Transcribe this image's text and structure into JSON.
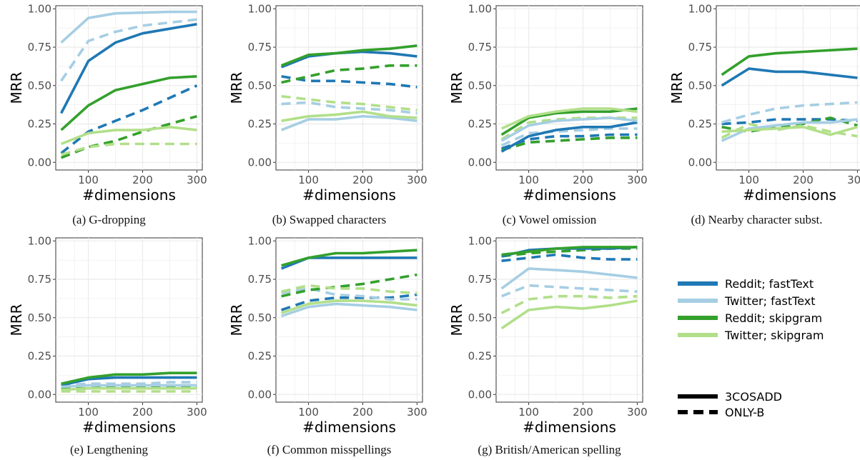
{
  "axis": {
    "ylabel": "MRR",
    "xlabel": "#dimensions",
    "xticks": [
      100,
      200,
      300
    ],
    "yticks": [
      "0.00",
      "0.25",
      "0.50",
      "0.75",
      "1.00"
    ],
    "xlim": [
      40,
      310
    ],
    "ylim": [
      -0.05,
      1.02
    ]
  },
  "colors": {
    "Reddit; fastText": "#1f78b4",
    "Twitter; fastText": "#a6cee3",
    "Reddit; skipgram": "#33a02c",
    "Twitter; skipgram": "#b2df8a",
    "grid": "#ebebeb"
  },
  "legend": {
    "series": [
      "Reddit; fastText",
      "Twitter; fastText",
      "Reddit; skipgram",
      "Twitter; skipgram"
    ],
    "linetypes": [
      "3COSADD",
      "ONLY-B"
    ]
  },
  "chart_data": [
    {
      "type": "line",
      "caption": "(a) G-dropping",
      "x": [
        50,
        100,
        150,
        200,
        250,
        300
      ],
      "series": [
        {
          "name": "Reddit; fastText",
          "linetype": "3COSADD",
          "values": [
            0.32,
            0.66,
            0.78,
            0.84,
            0.87,
            0.9
          ]
        },
        {
          "name": "Twitter; fastText",
          "linetype": "3COSADD",
          "values": [
            0.78,
            0.94,
            0.97,
            0.975,
            0.98,
            0.98
          ]
        },
        {
          "name": "Reddit; skipgram",
          "linetype": "3COSADD",
          "values": [
            0.21,
            0.37,
            0.47,
            0.51,
            0.55,
            0.56
          ]
        },
        {
          "name": "Twitter; skipgram",
          "linetype": "3COSADD",
          "values": [
            0.12,
            0.19,
            0.21,
            0.21,
            0.23,
            0.21
          ]
        },
        {
          "name": "Reddit; fastText",
          "linetype": "ONLY-B",
          "values": [
            0.06,
            0.2,
            0.27,
            0.34,
            0.42,
            0.5
          ]
        },
        {
          "name": "Twitter; fastText",
          "linetype": "ONLY-B",
          "values": [
            0.53,
            0.79,
            0.85,
            0.89,
            0.91,
            0.93
          ]
        },
        {
          "name": "Reddit; skipgram",
          "linetype": "ONLY-B",
          "values": [
            0.03,
            0.1,
            0.14,
            0.2,
            0.25,
            0.3
          ]
        },
        {
          "name": "Twitter; skipgram",
          "linetype": "ONLY-B",
          "values": [
            0.05,
            0.1,
            0.12,
            0.12,
            0.12,
            0.12
          ]
        }
      ]
    },
    {
      "type": "line",
      "caption": "(b) Swapped characters",
      "x": [
        50,
        100,
        150,
        200,
        250,
        300
      ],
      "series": [
        {
          "name": "Reddit; fastText",
          "linetype": "3COSADD",
          "values": [
            0.62,
            0.69,
            0.71,
            0.72,
            0.71,
            0.69
          ]
        },
        {
          "name": "Twitter; fastText",
          "linetype": "3COSADD",
          "values": [
            0.21,
            0.28,
            0.28,
            0.3,
            0.29,
            0.27
          ]
        },
        {
          "name": "Reddit; skipgram",
          "linetype": "3COSADD",
          "values": [
            0.63,
            0.7,
            0.71,
            0.73,
            0.74,
            0.76
          ]
        },
        {
          "name": "Twitter; skipgram",
          "linetype": "3COSADD",
          "values": [
            0.27,
            0.3,
            0.31,
            0.33,
            0.3,
            0.29
          ]
        },
        {
          "name": "Reddit; fastText",
          "linetype": "ONLY-B",
          "values": [
            0.56,
            0.53,
            0.53,
            0.52,
            0.51,
            0.49
          ]
        },
        {
          "name": "Twitter; fastText",
          "linetype": "ONLY-B",
          "values": [
            0.38,
            0.39,
            0.36,
            0.35,
            0.34,
            0.32
          ]
        },
        {
          "name": "Reddit; skipgram",
          "linetype": "ONLY-B",
          "values": [
            0.52,
            0.56,
            0.6,
            0.61,
            0.63,
            0.63
          ]
        },
        {
          "name": "Twitter; skipgram",
          "linetype": "ONLY-B",
          "values": [
            0.43,
            0.41,
            0.39,
            0.38,
            0.36,
            0.34
          ]
        }
      ]
    },
    {
      "type": "line",
      "caption": "(c) Vowel omission",
      "x": [
        50,
        100,
        150,
        200,
        250,
        300
      ],
      "series": [
        {
          "name": "Reddit; fastText",
          "linetype": "3COSADD",
          "values": [
            0.07,
            0.17,
            0.21,
            0.23,
            0.23,
            0.26
          ]
        },
        {
          "name": "Twitter; fastText",
          "linetype": "3COSADD",
          "values": [
            0.14,
            0.24,
            0.27,
            0.28,
            0.29,
            0.27
          ]
        },
        {
          "name": "Reddit; skipgram",
          "linetype": "3COSADD",
          "values": [
            0.18,
            0.29,
            0.32,
            0.33,
            0.33,
            0.35
          ]
        },
        {
          "name": "Twitter; skipgram",
          "linetype": "3COSADD",
          "values": [
            0.22,
            0.3,
            0.33,
            0.35,
            0.35,
            0.33
          ]
        },
        {
          "name": "Reddit; fastText",
          "linetype": "ONLY-B",
          "values": [
            0.09,
            0.15,
            0.17,
            0.17,
            0.18,
            0.18
          ]
        },
        {
          "name": "Twitter; fastText",
          "linetype": "ONLY-B",
          "values": [
            0.11,
            0.19,
            0.2,
            0.21,
            0.22,
            0.22
          ]
        },
        {
          "name": "Reddit; skipgram",
          "linetype": "ONLY-B",
          "values": [
            0.08,
            0.13,
            0.14,
            0.15,
            0.16,
            0.16
          ]
        },
        {
          "name": "Twitter; skipgram",
          "linetype": "ONLY-B",
          "values": [
            0.15,
            0.26,
            0.28,
            0.29,
            0.29,
            0.29
          ]
        }
      ]
    },
    {
      "type": "line",
      "caption": "(d) Nearby character subst.",
      "x": [
        50,
        100,
        150,
        200,
        250,
        300
      ],
      "series": [
        {
          "name": "Reddit; fastText",
          "linetype": "3COSADD",
          "values": [
            0.5,
            0.61,
            0.59,
            0.59,
            0.57,
            0.55
          ]
        },
        {
          "name": "Twitter; fastText",
          "linetype": "3COSADD",
          "values": [
            0.14,
            0.22,
            0.24,
            0.26,
            0.26,
            0.28
          ]
        },
        {
          "name": "Reddit; skipgram",
          "linetype": "3COSADD",
          "values": [
            0.57,
            0.69,
            0.71,
            0.72,
            0.73,
            0.74
          ]
        },
        {
          "name": "Twitter; skipgram",
          "linetype": "3COSADD",
          "values": [
            0.2,
            0.21,
            0.22,
            0.23,
            0.18,
            0.23
          ]
        },
        {
          "name": "Reddit; fastText",
          "linetype": "ONLY-B",
          "values": [
            0.25,
            0.26,
            0.28,
            0.28,
            0.28,
            0.27
          ]
        },
        {
          "name": "Twitter; fastText",
          "linetype": "ONLY-B",
          "values": [
            0.26,
            0.31,
            0.35,
            0.37,
            0.38,
            0.39
          ]
        },
        {
          "name": "Reddit; skipgram",
          "linetype": "ONLY-B",
          "values": [
            0.23,
            0.2,
            0.23,
            0.25,
            0.29,
            0.24
          ]
        },
        {
          "name": "Twitter; skipgram",
          "linetype": "ONLY-B",
          "values": [
            0.16,
            0.25,
            0.21,
            0.24,
            0.2,
            0.17
          ]
        }
      ]
    },
    {
      "type": "line",
      "caption": "(e) Lengthening",
      "x": [
        50,
        100,
        150,
        200,
        250,
        300
      ],
      "series": [
        {
          "name": "Reddit; fastText",
          "linetype": "3COSADD",
          "values": [
            0.06,
            0.1,
            0.11,
            0.11,
            0.11,
            0.11
          ]
        },
        {
          "name": "Twitter; fastText",
          "linetype": "3COSADD",
          "values": [
            0.05,
            0.06,
            0.06,
            0.06,
            0.06,
            0.06
          ]
        },
        {
          "name": "Reddit; skipgram",
          "linetype": "3COSADD",
          "values": [
            0.07,
            0.11,
            0.13,
            0.13,
            0.14,
            0.14
          ]
        },
        {
          "name": "Twitter; skipgram",
          "linetype": "3COSADD",
          "values": [
            0.03,
            0.04,
            0.04,
            0.04,
            0.04,
            0.04
          ]
        },
        {
          "name": "Reddit; fastText",
          "linetype": "ONLY-B",
          "values": [
            0.03,
            0.04,
            0.04,
            0.04,
            0.05,
            0.05
          ]
        },
        {
          "name": "Twitter; fastText",
          "linetype": "ONLY-B",
          "values": [
            0.06,
            0.07,
            0.07,
            0.07,
            0.08,
            0.08
          ]
        },
        {
          "name": "Reddit; skipgram",
          "linetype": "ONLY-B",
          "values": [
            0.04,
            0.04,
            0.05,
            0.05,
            0.05,
            0.05
          ]
        },
        {
          "name": "Twitter; skipgram",
          "linetype": "ONLY-B",
          "values": [
            0.02,
            0.02,
            0.02,
            0.02,
            0.02,
            0.02
          ]
        }
      ]
    },
    {
      "type": "line",
      "caption": "(f) Common misspellings",
      "x": [
        50,
        100,
        150,
        200,
        250,
        300
      ],
      "series": [
        {
          "name": "Reddit; fastText",
          "linetype": "3COSADD",
          "values": [
            0.82,
            0.89,
            0.89,
            0.89,
            0.89,
            0.89
          ]
        },
        {
          "name": "Twitter; fastText",
          "linetype": "3COSADD",
          "values": [
            0.51,
            0.57,
            0.59,
            0.58,
            0.57,
            0.55
          ]
        },
        {
          "name": "Reddit; skipgram",
          "linetype": "3COSADD",
          "values": [
            0.84,
            0.89,
            0.92,
            0.92,
            0.93,
            0.94
          ]
        },
        {
          "name": "Twitter; skipgram",
          "linetype": "3COSADD",
          "values": [
            0.53,
            0.59,
            0.61,
            0.61,
            0.6,
            0.58
          ]
        },
        {
          "name": "Reddit; fastText",
          "linetype": "ONLY-B",
          "values": [
            0.55,
            0.61,
            0.63,
            0.63,
            0.63,
            0.65
          ]
        },
        {
          "name": "Twitter; fastText",
          "linetype": "ONLY-B",
          "values": [
            0.66,
            0.69,
            0.65,
            0.64,
            0.62,
            0.62
          ]
        },
        {
          "name": "Reddit; skipgram",
          "linetype": "ONLY-B",
          "values": [
            0.64,
            0.68,
            0.7,
            0.72,
            0.75,
            0.78
          ]
        },
        {
          "name": "Twitter; skipgram",
          "linetype": "ONLY-B",
          "values": [
            0.67,
            0.71,
            0.69,
            0.69,
            0.67,
            0.66
          ]
        }
      ]
    },
    {
      "type": "line",
      "caption": "(g) British/American spelling",
      "x": [
        50,
        100,
        150,
        200,
        250,
        300
      ],
      "series": [
        {
          "name": "Reddit; fastText",
          "linetype": "3COSADD",
          "values": [
            0.9,
            0.94,
            0.95,
            0.95,
            0.95,
            0.96
          ]
        },
        {
          "name": "Twitter; fastText",
          "linetype": "3COSADD",
          "values": [
            0.69,
            0.82,
            0.81,
            0.8,
            0.78,
            0.76
          ]
        },
        {
          "name": "Reddit; skipgram",
          "linetype": "3COSADD",
          "values": [
            0.91,
            0.93,
            0.95,
            0.96,
            0.96,
            0.96
          ]
        },
        {
          "name": "Twitter; skipgram",
          "linetype": "3COSADD",
          "values": [
            0.43,
            0.55,
            0.57,
            0.56,
            0.58,
            0.61
          ]
        },
        {
          "name": "Reddit; fastText",
          "linetype": "ONLY-B",
          "values": [
            0.87,
            0.89,
            0.91,
            0.89,
            0.88,
            0.88
          ]
        },
        {
          "name": "Twitter; fastText",
          "linetype": "ONLY-B",
          "values": [
            0.64,
            0.71,
            0.7,
            0.69,
            0.68,
            0.67
          ]
        },
        {
          "name": "Reddit; skipgram",
          "linetype": "ONLY-B",
          "values": [
            0.9,
            0.92,
            0.93,
            0.94,
            0.95,
            0.95
          ]
        },
        {
          "name": "Twitter; skipgram",
          "linetype": "ONLY-B",
          "values": [
            0.53,
            0.62,
            0.64,
            0.64,
            0.63,
            0.64
          ]
        }
      ]
    }
  ]
}
